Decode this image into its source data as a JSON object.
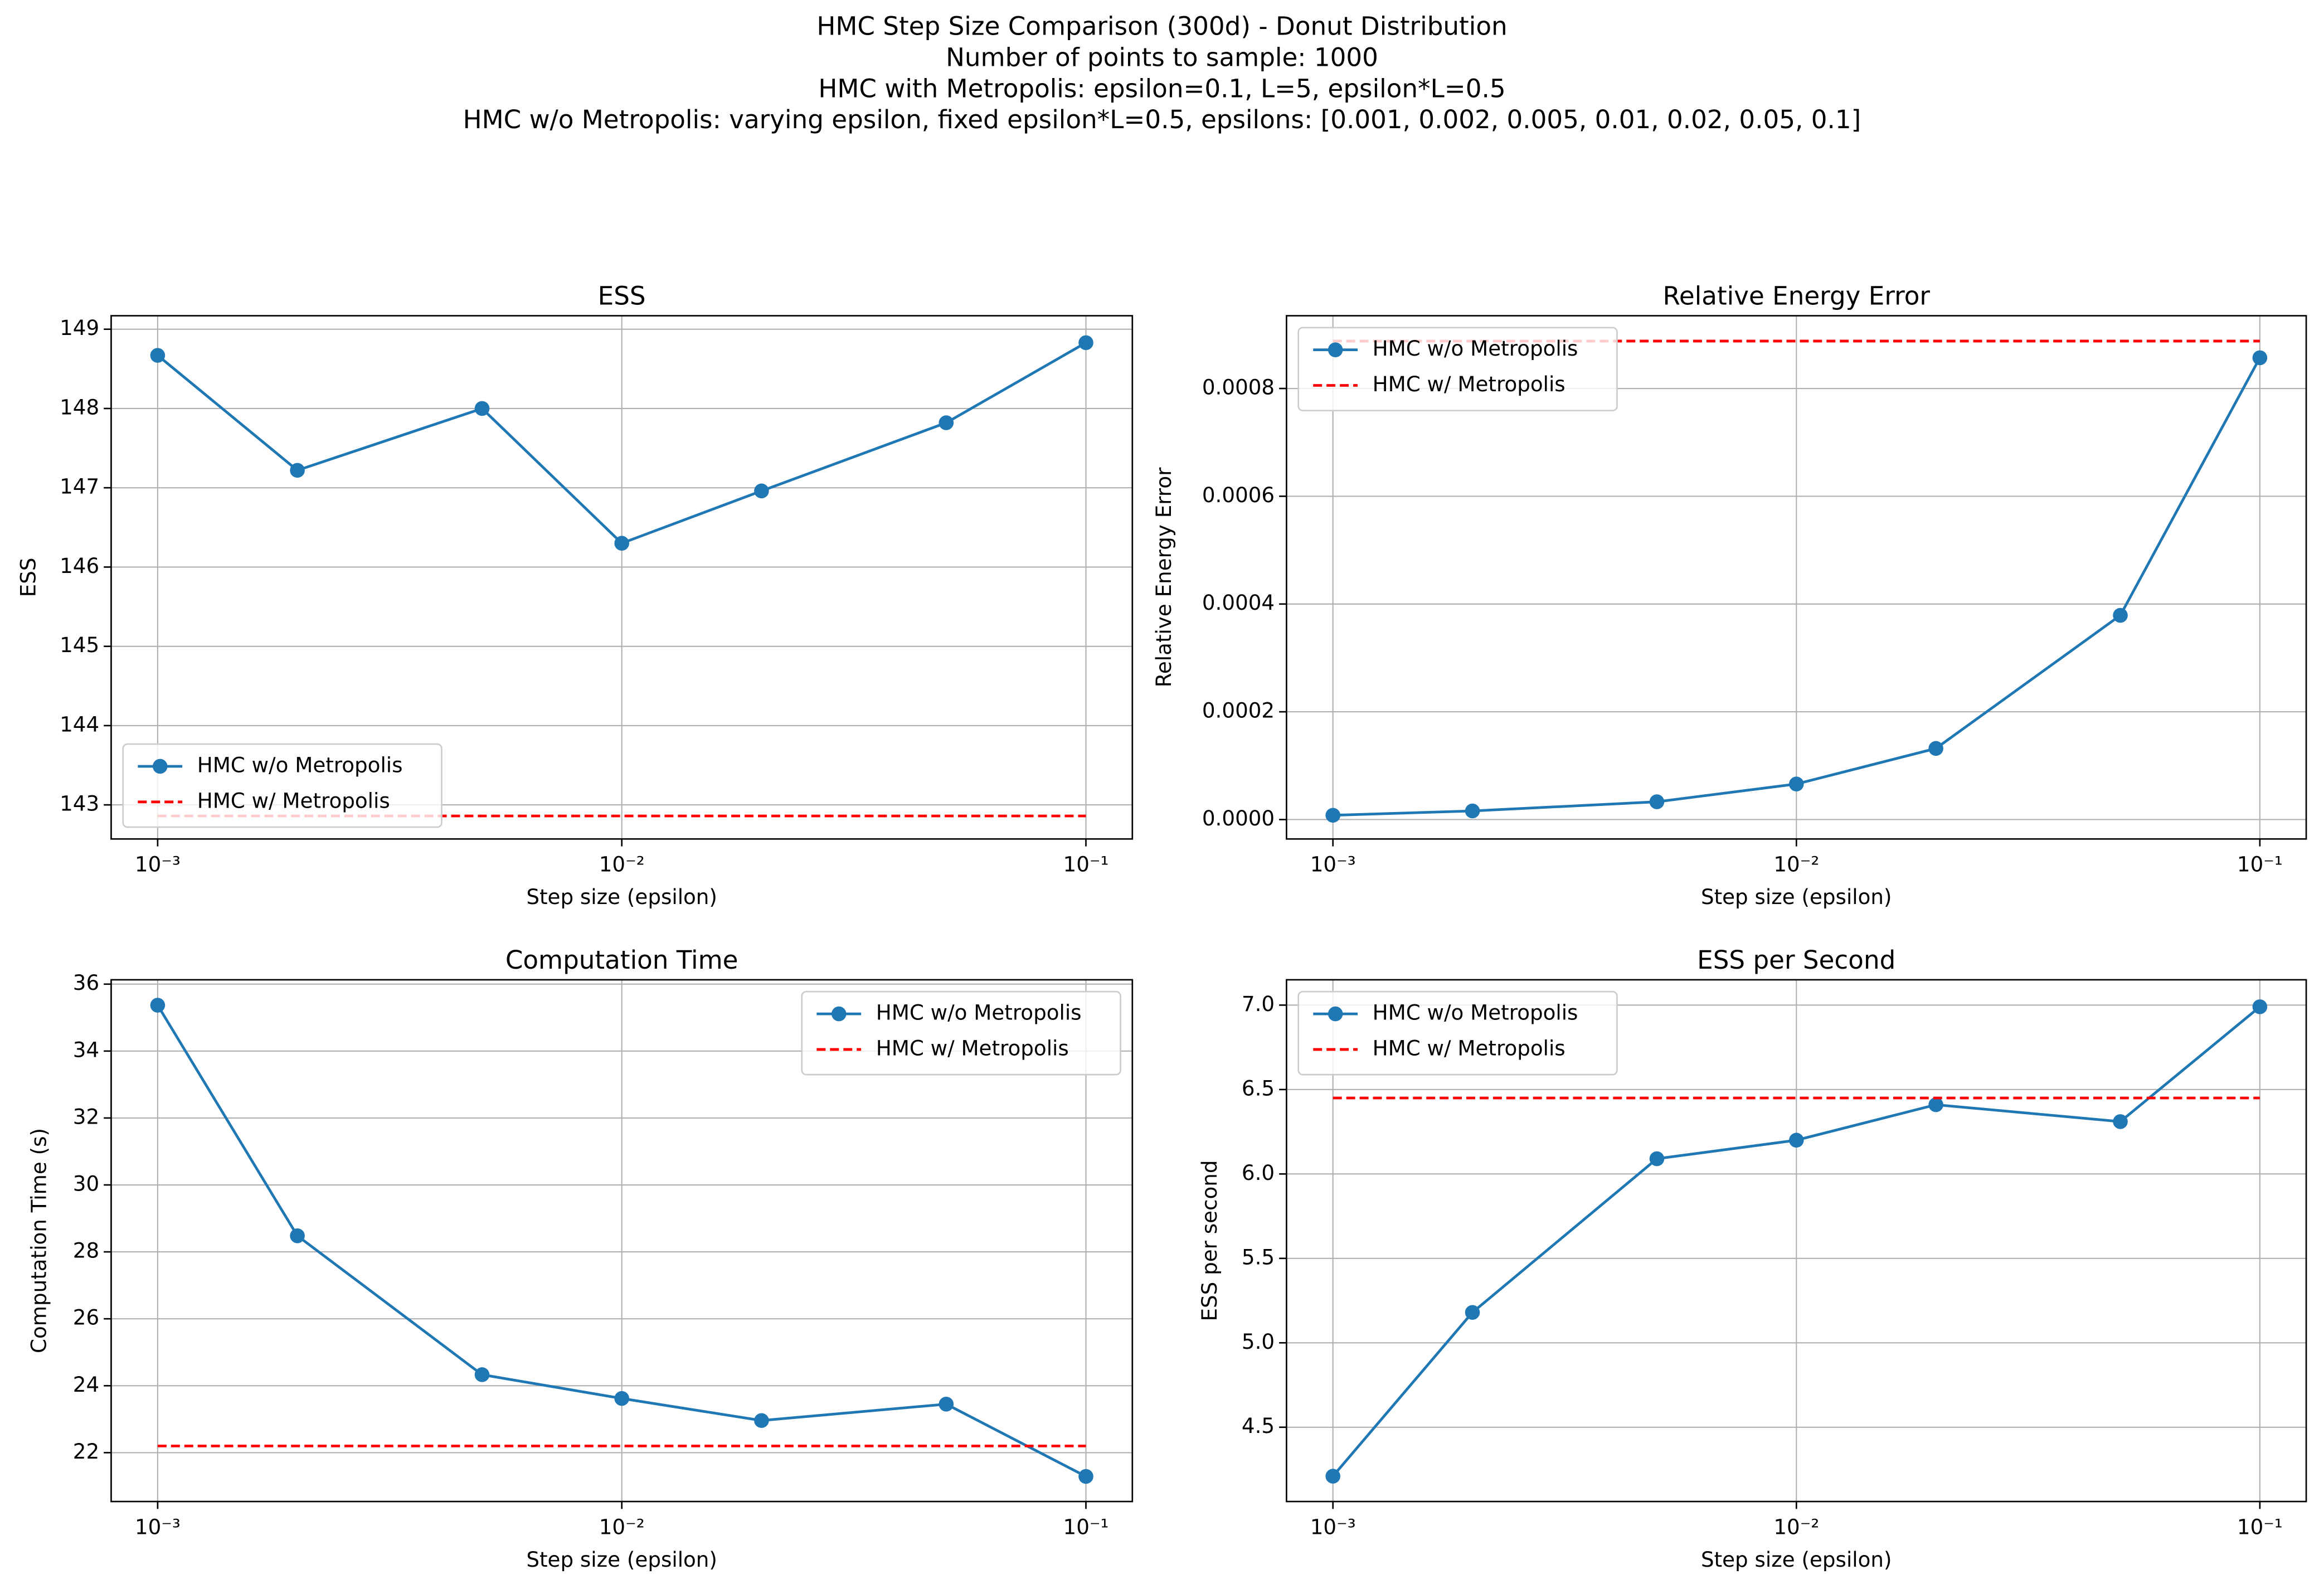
{
  "suptitle": [
    "HMC Step Size Comparison (300d) - Donut Distribution",
    "Number of points to sample: 1000",
    "HMC with Metropolis: epsilon=0.1, L=5, epsilon*L=0.5",
    "HMC w/o Metropolis: varying epsilon, fixed epsilon*L=0.5, epsilons: [0.001, 0.002, 0.005, 0.01, 0.02, 0.05, 0.1]"
  ],
  "chart_data": [
    {
      "type": "line",
      "title": "ESS",
      "xlabel": "Step size (epsilon)",
      "ylabel": "ESS",
      "xscale": "log",
      "grid": true,
      "legend": "lower left",
      "x": [
        0.001,
        0.002,
        0.005,
        0.01,
        0.02,
        0.05,
        0.1
      ],
      "series": [
        {
          "name": "HMC w/o Metropolis",
          "color": "#1f77b4",
          "linestyle": "solid",
          "marker": "o",
          "values": [
            148.67,
            147.22,
            148.0,
            146.3,
            146.96,
            147.82,
            148.83
          ]
        },
        {
          "name": "HMC w/ Metropolis",
          "color": "#ff0000",
          "linestyle": "dashed",
          "values": [
            142.86,
            142.86,
            142.86,
            142.86,
            142.86,
            142.86,
            142.86
          ]
        }
      ],
      "xlim": [
        0.000794,
        0.1259
      ],
      "xticks": [
        {
          "value": 0.001,
          "label": "10⁻³"
        },
        {
          "value": 0.01,
          "label": "10⁻²"
        },
        {
          "value": 0.1,
          "label": "10⁻¹"
        }
      ],
      "ylim": [
        142.57,
        149.17
      ],
      "yticks": [
        143,
        144,
        145,
        146,
        147,
        148,
        149
      ]
    },
    {
      "type": "line",
      "title": "Relative Energy Error",
      "xlabel": "Step size (epsilon)",
      "ylabel": "Relative Energy Error",
      "xscale": "log",
      "grid": true,
      "legend": "upper left",
      "x": [
        0.001,
        0.002,
        0.005,
        0.01,
        0.02,
        0.05,
        0.1
      ],
      "series": [
        {
          "name": "HMC w/o Metropolis",
          "color": "#1f77b4",
          "linestyle": "solid",
          "marker": "o",
          "values": [
            8e-06,
            1.6e-05,
            3.3e-05,
            6.6e-05,
            0.000132,
            0.000379,
            0.000857
          ]
        },
        {
          "name": "HMC w/ Metropolis",
          "color": "#ff0000",
          "linestyle": "dashed",
          "values": [
            0.000888,
            0.000888,
            0.000888,
            0.000888,
            0.000888,
            0.000888,
            0.000888
          ]
        }
      ],
      "xlim": [
        0.000794,
        0.1259
      ],
      "xticks": [
        {
          "value": 0.001,
          "label": "10⁻³"
        },
        {
          "value": 0.01,
          "label": "10⁻²"
        },
        {
          "value": 0.1,
          "label": "10⁻¹"
        }
      ],
      "ylim": [
        -3.6e-05,
        0.000935
      ],
      "yticks": [
        {
          "value": 0,
          "label": "0.0000"
        },
        {
          "value": 0.0002,
          "label": "0.0002"
        },
        {
          "value": 0.0004,
          "label": "0.0004"
        },
        {
          "value": 0.0006,
          "label": "0.0006"
        },
        {
          "value": 0.0008,
          "label": "0.0008"
        }
      ]
    },
    {
      "type": "line",
      "title": "Computation Time",
      "xlabel": "Step size (epsilon)",
      "ylabel": "Computation Time (s)",
      "xscale": "log",
      "grid": true,
      "legend": "upper right",
      "x": [
        0.001,
        0.002,
        0.005,
        0.01,
        0.02,
        0.05,
        0.1
      ],
      "series": [
        {
          "name": "HMC w/o Metropolis",
          "color": "#1f77b4",
          "linestyle": "solid",
          "marker": "o",
          "values": [
            35.37,
            28.48,
            24.33,
            23.62,
            22.96,
            23.45,
            21.29
          ]
        },
        {
          "name": "HMC w/ Metropolis",
          "color": "#ff0000",
          "linestyle": "dashed",
          "values": [
            22.2,
            22.2,
            22.2,
            22.2,
            22.2,
            22.2,
            22.2
          ]
        }
      ],
      "xlim": [
        0.000794,
        0.1259
      ],
      "xticks": [
        {
          "value": 0.001,
          "label": "10⁻³"
        },
        {
          "value": 0.01,
          "label": "10⁻²"
        },
        {
          "value": 0.1,
          "label": "10⁻¹"
        }
      ],
      "ylim": [
        20.54,
        36.13
      ],
      "yticks": [
        22,
        24,
        26,
        28,
        30,
        32,
        34,
        36
      ]
    },
    {
      "type": "line",
      "title": "ESS per Second",
      "xlabel": "Step size (epsilon)",
      "ylabel": "ESS per second",
      "xscale": "log",
      "grid": true,
      "legend": "upper left",
      "x": [
        0.001,
        0.002,
        0.005,
        0.01,
        0.02,
        0.05,
        0.1
      ],
      "series": [
        {
          "name": "HMC w/o Metropolis",
          "color": "#1f77b4",
          "linestyle": "solid",
          "marker": "o",
          "values": [
            4.21,
            5.18,
            6.09,
            6.2,
            6.41,
            6.31,
            6.99
          ]
        },
        {
          "name": "HMC w/ Metropolis",
          "color": "#ff0000",
          "linestyle": "dashed",
          "values": [
            6.45,
            6.45,
            6.45,
            6.45,
            6.45,
            6.45,
            6.45
          ]
        }
      ],
      "xlim": [
        0.000794,
        0.1259
      ],
      "xticks": [
        {
          "value": 0.001,
          "label": "10⁻³"
        },
        {
          "value": 0.01,
          "label": "10⁻²"
        },
        {
          "value": 0.1,
          "label": "10⁻¹"
        }
      ],
      "ylim": [
        4.06,
        7.15
      ],
      "yticks": [
        {
          "value": 4.5,
          "label": "4.5"
        },
        {
          "value": 5,
          "label": "5.0"
        },
        {
          "value": 5.5,
          "label": "5.5"
        },
        {
          "value": 6,
          "label": "6.0"
        },
        {
          "value": 6.5,
          "label": "6.5"
        },
        {
          "value": 7,
          "label": "7.0"
        }
      ]
    }
  ]
}
